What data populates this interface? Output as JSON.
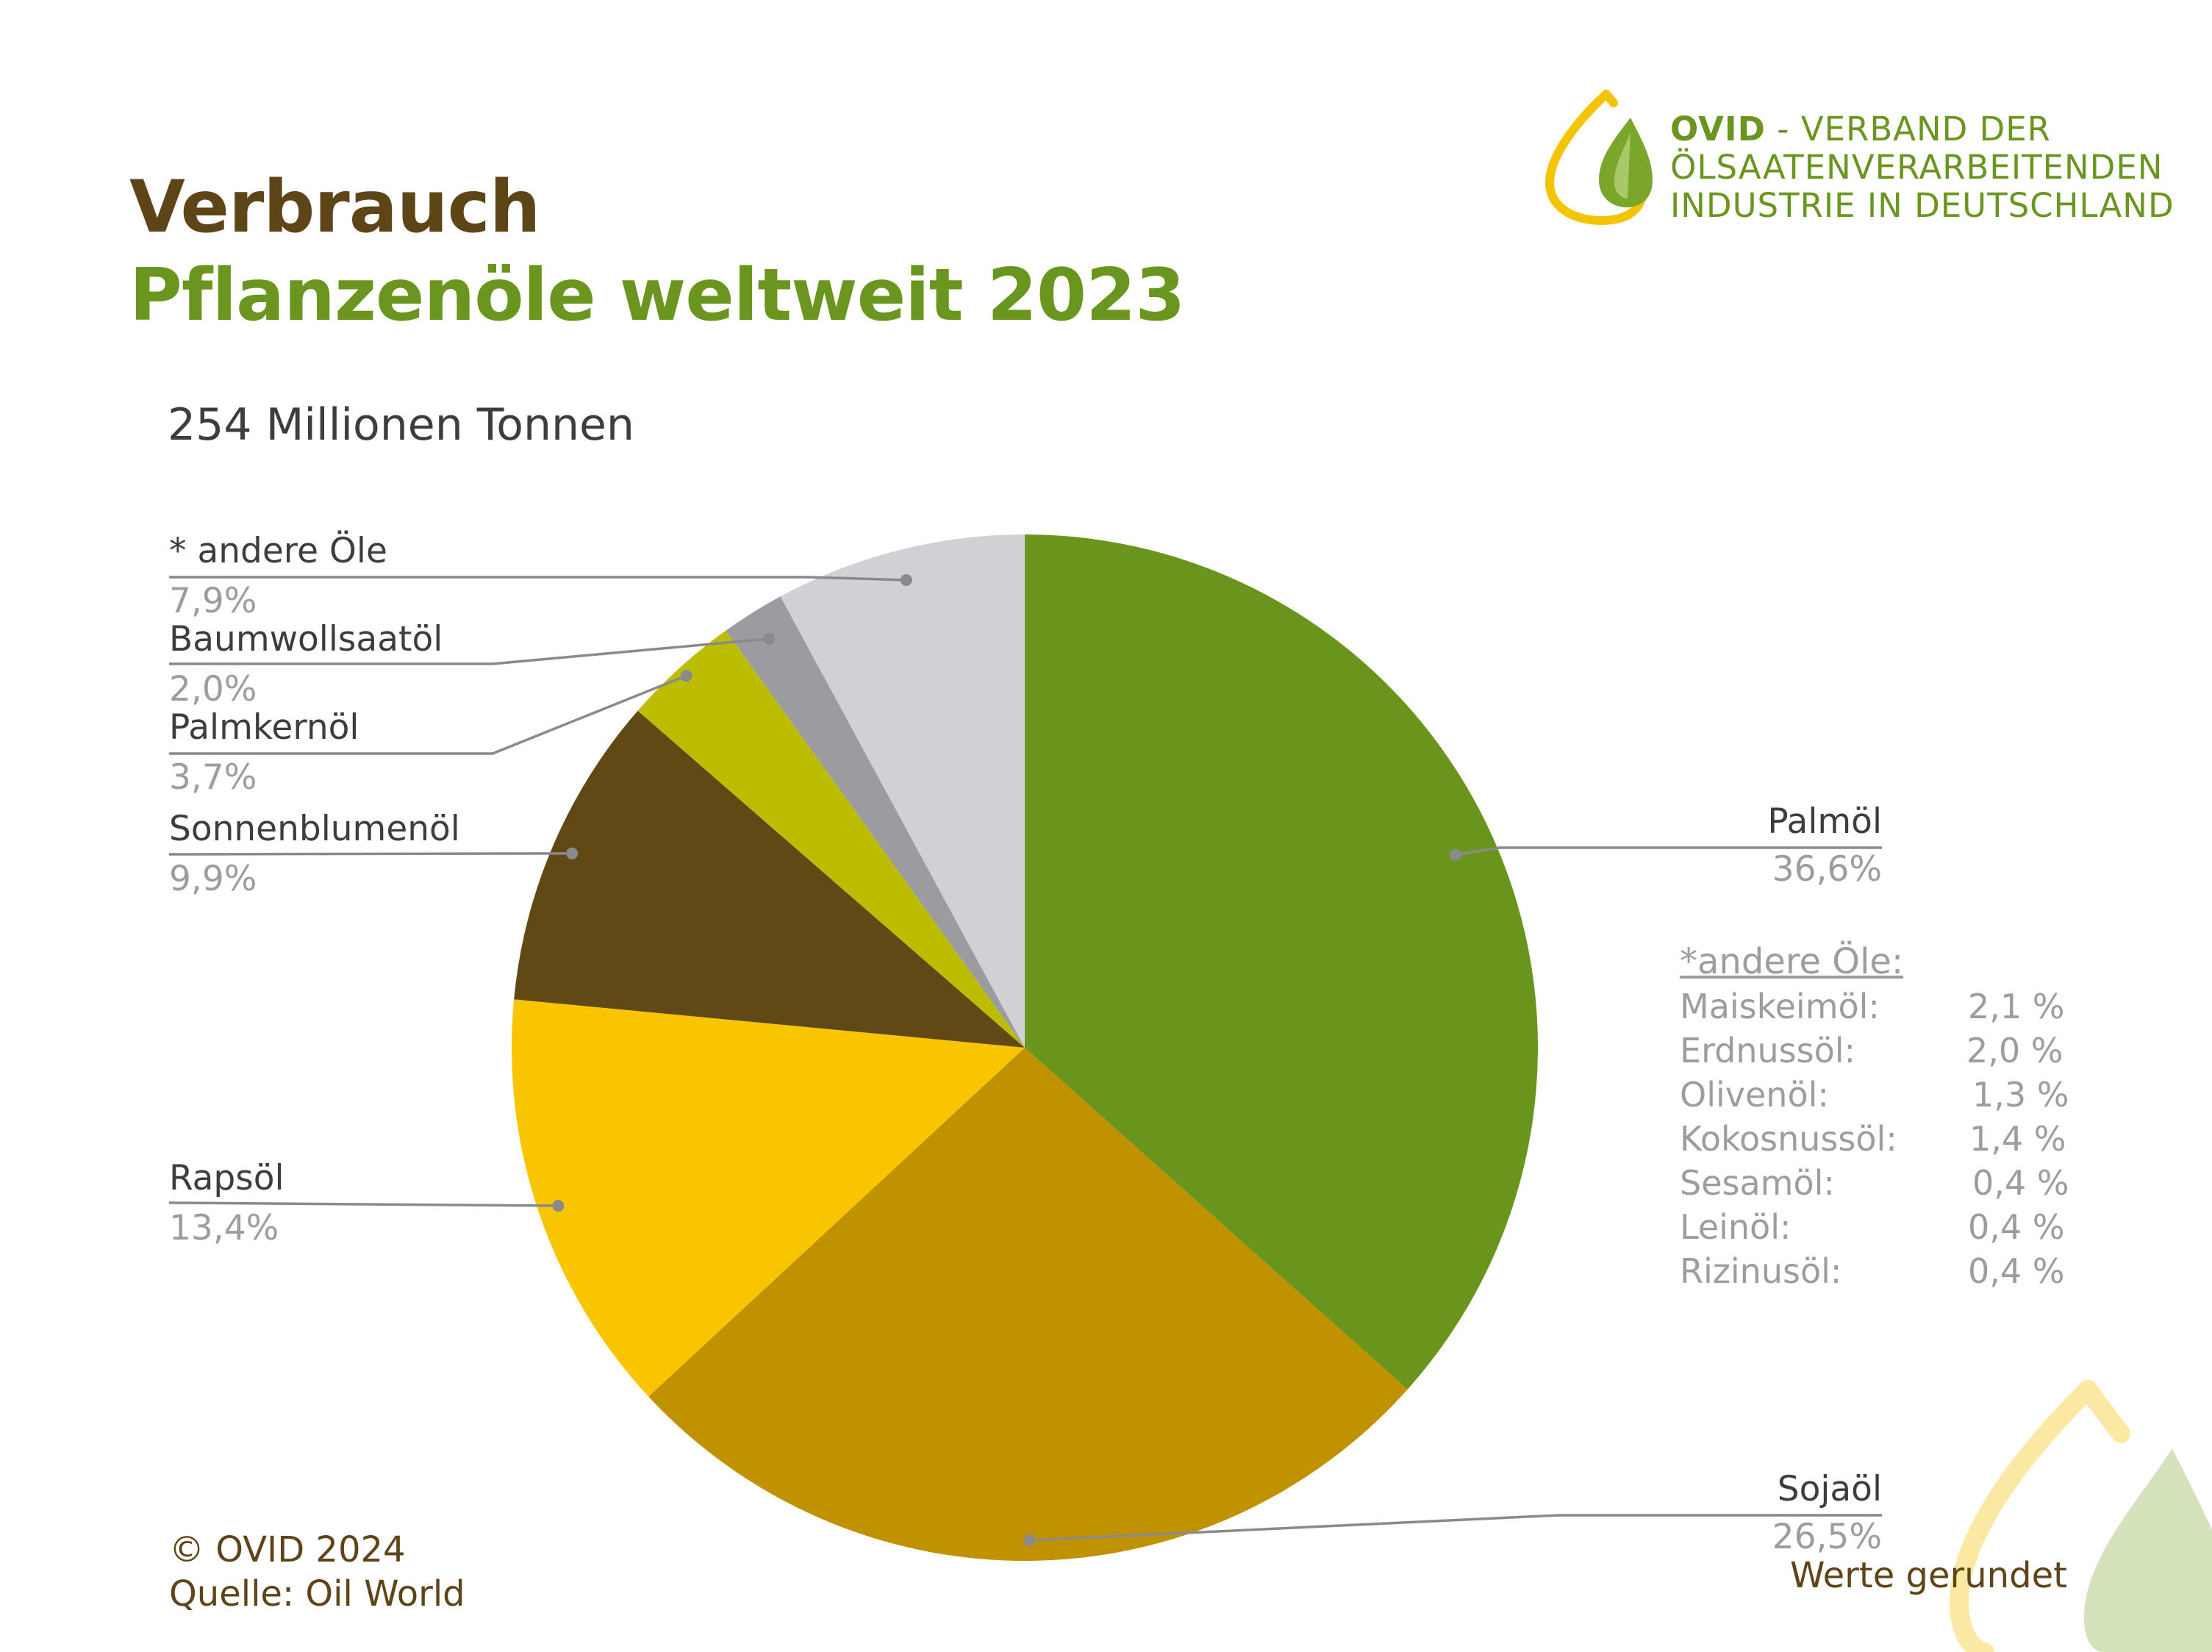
{
  "header": {
    "title_line1": "Verbrauch",
    "title_line2": "Pflanzenöle weltweit 2023",
    "subtitle": "254 Millionen Tonnen"
  },
  "logo": {
    "brand": "OVID",
    "line1_rest": " - VERBAND DER",
    "line2": "ÖLSAATENVERARBEITENDEN",
    "line3": "INDUSTRIE IN DEUTSCHLAND",
    "icon": "oil-drop-leaf-icon"
  },
  "chart_data": {
    "type": "pie",
    "title": "Pflanzenöle weltweit 2023",
    "total_label": "254 Millionen Tonnen",
    "slices": [
      {
        "name": "Palmöl",
        "value": 36.6,
        "label": "36,6%",
        "color": "#6a951c"
      },
      {
        "name": "Sojaöl",
        "value": 26.5,
        "label": "26,5%",
        "color": "#c09200"
      },
      {
        "name": "Rapsöl",
        "value": 13.4,
        "label": "13,4%",
        "color": "#f9c400"
      },
      {
        "name": "Sonnenblumenöl",
        "value": 9.9,
        "label": "9,9%",
        "color": "#614916"
      },
      {
        "name": "Palmkernöl",
        "value": 3.7,
        "label": "3,7%",
        "color": "#bcbd00"
      },
      {
        "name": "Baumwollsaatöl",
        "value": 2.0,
        "label": "2,0%",
        "color": "#9b9ca0"
      },
      {
        "name": "* andere Öle",
        "value": 7.9,
        "label": "7,9%",
        "color": "#cfd1d4"
      }
    ],
    "start_angle_deg": 0,
    "direction": "clockwise"
  },
  "other_oils": {
    "title": "*andere  Öle:",
    "items": [
      {
        "name": "Maiskeimöl:",
        "value": "2,1   %"
      },
      {
        "name": "Erdnussöl:",
        "value": "2,0  %"
      },
      {
        "name": "Olivenöl:",
        "value": "1,3   %"
      },
      {
        "name": "Kokosnussöl:",
        "value": "1,4   %"
      },
      {
        "name": "Sesamöl:",
        "value": "0,4  %"
      },
      {
        "name": "Leinöl:",
        "value": "0,4  %"
      },
      {
        "name": "Rizinusöl:",
        "value": "0,4  %"
      }
    ]
  },
  "footer": {
    "copyright": "© OVID 2024",
    "source": "Quelle: Oil World",
    "note": "Werte gerundet"
  },
  "colors": {
    "brown": "#5e4518",
    "green": "#6a9620",
    "yellow": "#f5c400",
    "leader": "#8a8a8a"
  }
}
